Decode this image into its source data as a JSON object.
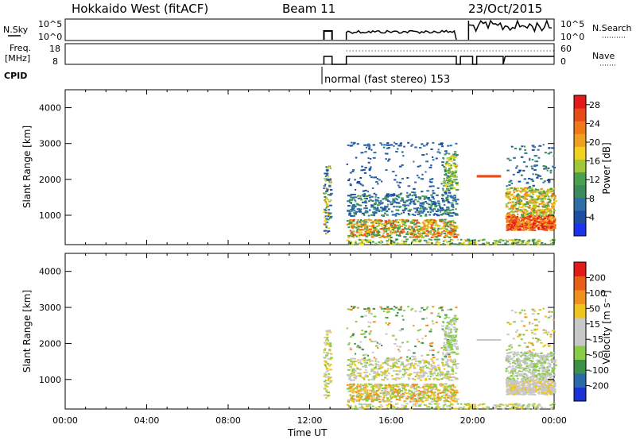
{
  "header": {
    "radar": "Hokkaido West (fitACF)",
    "beam": "Beam 11",
    "date": "23/Oct/2015"
  },
  "top_panel": {
    "nsky_label": "N.Sky",
    "nsky_ticks": [
      "10^5",
      "10^0"
    ],
    "nsearch_label": "N.Search",
    "nsearch_ticks": [
      "10^5",
      "10^0"
    ],
    "freq_label_1": "Freq.",
    "freq_label_2": "[MHz]",
    "freq_ticks": [
      "18",
      "8"
    ],
    "nave_label": "Nave",
    "nave_ticks": [
      "60",
      "0"
    ],
    "cpid_label": "CPID",
    "cpid_text": "normal (fast stereo) 153"
  },
  "colors": {
    "power": [
      "#1b32f0",
      "#1d4ea4",
      "#2e6fa8",
      "#3a8c5c",
      "#4aa04e",
      "#9ec838",
      "#f0d21e",
      "#f0a020",
      "#ef7818",
      "#e84a18",
      "#e21a1a"
    ],
    "velocity": [
      "#1b32d8",
      "#2a6aa8",
      "#3c9048",
      "#88cc48",
      "#c8c8c8",
      "#c8c8c8",
      "#f0c41e",
      "#f0901e",
      "#e86018",
      "#e21a1a"
    ]
  },
  "chart_data": [
    {
      "type": "heatmap",
      "name": "power-panel",
      "ylabel": "Slant Range [km]",
      "yticks": [
        1000,
        2000,
        3000,
        4000
      ],
      "ylim": [
        180,
        4500
      ],
      "xlim": [
        0,
        24
      ],
      "colorbar_label": "Power [dB]",
      "colorbar_ticks": [
        4,
        8,
        12,
        16,
        20,
        24,
        28
      ],
      "colorbar_range": [
        0,
        30
      ]
    },
    {
      "type": "heatmap",
      "name": "velocity-panel",
      "ylabel": "Slant Range [km]",
      "yticks": [
        1000,
        2000,
        3000,
        4000
      ],
      "ylim": [
        180,
        4500
      ],
      "xlim": [
        0,
        24
      ],
      "xlabel": "Time UT",
      "xticks": [
        "00:00",
        "04:00",
        "08:00",
        "12:00",
        "16:00",
        "20:00",
        "00:00"
      ],
      "colorbar_label": "Velocity [m s⁻¹]",
      "colorbar_ticks": [
        "200",
        "100",
        "50",
        "15",
        "-15",
        "-50",
        "-100",
        "-200"
      ]
    }
  ]
}
